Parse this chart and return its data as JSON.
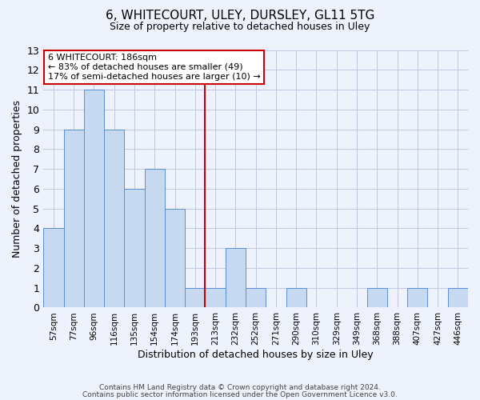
{
  "title1": "6, WHITECOURT, ULEY, DURSLEY, GL11 5TG",
  "title2": "Size of property relative to detached houses in Uley",
  "xlabel": "Distribution of detached houses by size in Uley",
  "ylabel": "Number of detached properties",
  "bar_labels": [
    "57sqm",
    "77sqm",
    "96sqm",
    "116sqm",
    "135sqm",
    "154sqm",
    "174sqm",
    "193sqm",
    "213sqm",
    "232sqm",
    "252sqm",
    "271sqm",
    "290sqm",
    "310sqm",
    "329sqm",
    "349sqm",
    "368sqm",
    "388sqm",
    "407sqm",
    "427sqm",
    "446sqm"
  ],
  "bar_values": [
    4,
    9,
    11,
    9,
    6,
    7,
    5,
    1,
    1,
    3,
    1,
    0,
    1,
    0,
    0,
    0,
    1,
    0,
    1,
    0,
    1
  ],
  "bar_color": "#c6d9f1",
  "bar_edge_color": "#5b8dd9",
  "red_line_x": 7.5,
  "red_line_color": "#cc0000",
  "annotation_text": "6 WHITECOURT: 186sqm\n← 83% of detached houses are smaller (49)\n17% of semi-detached houses are larger (10) →",
  "annotation_box_color": "#cc0000",
  "ylim": [
    0,
    13
  ],
  "yticks": [
    0,
    1,
    2,
    3,
    4,
    5,
    6,
    7,
    8,
    9,
    10,
    11,
    12,
    13
  ],
  "grid_color": "#c0c8e0",
  "footer1": "Contains HM Land Registry data © Crown copyright and database right 2024.",
  "footer2": "Contains public sector information licensed under the Open Government Licence v3.0.",
  "bg_color": "#eef2fc",
  "plot_bg_color": "#eef2fc"
}
